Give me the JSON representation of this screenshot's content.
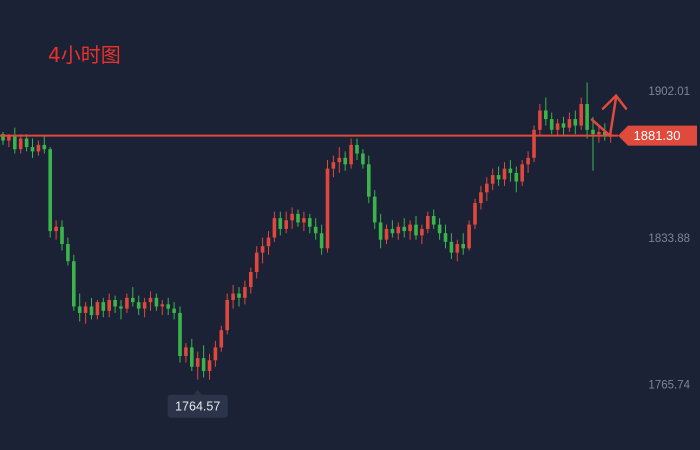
{
  "chart_data": {
    "type": "candlestick",
    "title": "4小时图",
    "y_axis": {
      "ticks": [
        1902.01,
        1833.88,
        1765.74
      ],
      "position": "right"
    },
    "y_domain": [
      1740,
      1935
    ],
    "current_price": {
      "value": 1881.3,
      "label": "1881.30"
    },
    "low_marker": {
      "value": 1764.57,
      "label": "1764.57"
    },
    "colors": {
      "background": "#1b2236",
      "up": "#e0473d",
      "down": "#3bb54a",
      "price_line": "#e04a3c",
      "price_label_bg": "#e04a3c",
      "axis_text": "#7e8596",
      "title": "#e8322a",
      "low_label_bg": "#2b3448"
    },
    "annotation": "arrow projecting price upward from the current level",
    "candles": [
      [
        1882,
        1883,
        1877,
        1879
      ],
      [
        1879,
        1882,
        1876,
        1881
      ],
      [
        1881,
        1885,
        1873,
        1875
      ],
      [
        1875,
        1882,
        1873,
        1880
      ],
      [
        1880,
        1882,
        1874,
        1876
      ],
      [
        1876,
        1880,
        1871,
        1874
      ],
      [
        1874,
        1879,
        1872,
        1877
      ],
      [
        1877,
        1881,
        1873,
        1875
      ],
      [
        1875,
        1876,
        1834,
        1837
      ],
      [
        1837,
        1842,
        1833,
        1839
      ],
      [
        1839,
        1842,
        1828,
        1831
      ],
      [
        1831,
        1834,
        1821,
        1823
      ],
      [
        1823,
        1826,
        1800,
        1802
      ],
      [
        1802,
        1808,
        1795,
        1799
      ],
      [
        1799,
        1804,
        1794,
        1802
      ],
      [
        1802,
        1806,
        1796,
        1798
      ],
      [
        1798,
        1805,
        1796,
        1804
      ],
      [
        1804,
        1806,
        1797,
        1800
      ],
      [
        1800,
        1808,
        1797,
        1805
      ],
      [
        1805,
        1807,
        1799,
        1802
      ],
      [
        1802,
        1805,
        1796,
        1801
      ],
      [
        1801,
        1808,
        1799,
        1806
      ],
      [
        1806,
        1811,
        1802,
        1804
      ],
      [
        1804,
        1807,
        1798,
        1801
      ],
      [
        1801,
        1806,
        1797,
        1804
      ],
      [
        1804,
        1809,
        1800,
        1806
      ],
      [
        1806,
        1808,
        1800,
        1802
      ],
      [
        1802,
        1805,
        1798,
        1803
      ],
      [
        1803,
        1806,
        1798,
        1801
      ],
      [
        1801,
        1804,
        1796,
        1799
      ],
      [
        1799,
        1802,
        1776,
        1779
      ],
      [
        1779,
        1785,
        1776,
        1783
      ],
      [
        1783,
        1787,
        1772,
        1774
      ],
      [
        1774,
        1781,
        1768,
        1778
      ],
      [
        1778,
        1784,
        1769,
        1772
      ],
      [
        1772,
        1780,
        1768,
        1777
      ],
      [
        1777,
        1786,
        1774,
        1783
      ],
      [
        1783,
        1793,
        1781,
        1791
      ],
      [
        1791,
        1808,
        1789,
        1805
      ],
      [
        1805,
        1812,
        1801,
        1808
      ],
      [
        1808,
        1811,
        1802,
        1806
      ],
      [
        1806,
        1814,
        1803,
        1811
      ],
      [
        1811,
        1820,
        1808,
        1818
      ],
      [
        1818,
        1830,
        1815,
        1827
      ],
      [
        1827,
        1834,
        1822,
        1830
      ],
      [
        1830,
        1837,
        1826,
        1834
      ],
      [
        1834,
        1846,
        1832,
        1843
      ],
      [
        1843,
        1846,
        1835,
        1838
      ],
      [
        1838,
        1846,
        1836,
        1842
      ],
      [
        1842,
        1848,
        1838,
        1845
      ],
      [
        1845,
        1847,
        1839,
        1841
      ],
      [
        1841,
        1846,
        1837,
        1843
      ],
      [
        1843,
        1845,
        1836,
        1839
      ],
      [
        1839,
        1843,
        1833,
        1836
      ],
      [
        1836,
        1840,
        1826,
        1829
      ],
      [
        1829,
        1870,
        1827,
        1866
      ],
      [
        1866,
        1872,
        1862,
        1869
      ],
      [
        1869,
        1876,
        1864,
        1871
      ],
      [
        1871,
        1874,
        1865,
        1868
      ],
      [
        1868,
        1880,
        1866,
        1877
      ],
      [
        1877,
        1880,
        1870,
        1873
      ],
      [
        1873,
        1875,
        1866,
        1868
      ],
      [
        1868,
        1872,
        1850,
        1853
      ],
      [
        1853,
        1856,
        1838,
        1841
      ],
      [
        1841,
        1845,
        1829,
        1833
      ],
      [
        1833,
        1840,
        1831,
        1838
      ],
      [
        1838,
        1842,
        1834,
        1836
      ],
      [
        1836,
        1841,
        1833,
        1839
      ],
      [
        1839,
        1843,
        1834,
        1837
      ],
      [
        1837,
        1842,
        1833,
        1840
      ],
      [
        1840,
        1844,
        1833,
        1835
      ],
      [
        1835,
        1840,
        1831,
        1838
      ],
      [
        1838,
        1846,
        1836,
        1844
      ],
      [
        1844,
        1847,
        1838,
        1840
      ],
      [
        1840,
        1843,
        1833,
        1836
      ],
      [
        1836,
        1840,
        1829,
        1832
      ],
      [
        1832,
        1836,
        1824,
        1827
      ],
      [
        1827,
        1833,
        1823,
        1831
      ],
      [
        1831,
        1836,
        1826,
        1829
      ],
      [
        1829,
        1842,
        1828,
        1840
      ],
      [
        1840,
        1852,
        1838,
        1850
      ],
      [
        1850,
        1858,
        1847,
        1855
      ],
      [
        1855,
        1862,
        1851,
        1859
      ],
      [
        1859,
        1866,
        1856,
        1863
      ],
      [
        1863,
        1867,
        1858,
        1861
      ],
      [
        1861,
        1869,
        1858,
        1866
      ],
      [
        1866,
        1870,
        1860,
        1864
      ],
      [
        1864,
        1867,
        1855,
        1860
      ],
      [
        1860,
        1870,
        1858,
        1868
      ],
      [
        1868,
        1874,
        1864,
        1871
      ],
      [
        1871,
        1886,
        1869,
        1884
      ],
      [
        1884,
        1896,
        1881,
        1893
      ],
      [
        1893,
        1899,
        1886,
        1889
      ],
      [
        1889,
        1892,
        1882,
        1884
      ],
      [
        1884,
        1889,
        1881,
        1887
      ],
      [
        1887,
        1890,
        1881,
        1885
      ],
      [
        1885,
        1892,
        1883,
        1889
      ],
      [
        1889,
        1893,
        1882,
        1886
      ],
      [
        1886,
        1899,
        1884,
        1896
      ],
      [
        1896,
        1906,
        1880,
        1884
      ],
      [
        1884,
        1890,
        1865,
        1882
      ],
      [
        1882,
        1886,
        1878,
        1883
      ],
      [
        1883,
        1887,
        1879,
        1881
      ],
      [
        1881,
        1884,
        1878,
        1882
      ]
    ]
  }
}
